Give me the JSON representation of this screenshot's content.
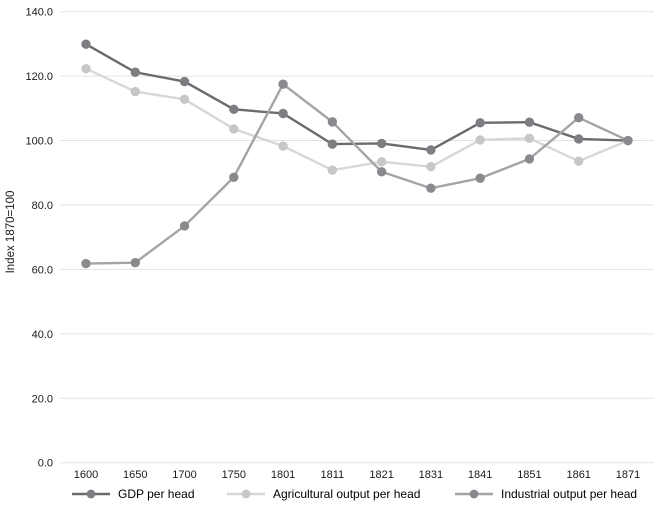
{
  "chart_data": {
    "type": "line",
    "title": "",
    "xlabel": "",
    "ylabel": "Index 1870=100",
    "ylim": [
      0,
      140
    ],
    "grid": "horizontal-only",
    "legend_position": "bottom",
    "background_color": "#ffffff",
    "gridline_color": "#e3e3e3",
    "text_color": "#1a1a1a",
    "categories": [
      "1600",
      "1650",
      "1700",
      "1750",
      "1801",
      "1811",
      "1821",
      "1831",
      "1841",
      "1851",
      "1861",
      "1871"
    ],
    "y_tick_values": [
      0,
      20,
      40,
      60,
      80,
      100,
      120,
      140
    ],
    "y_tick_labels": [
      "0.0",
      "20.0",
      "40.0",
      "60.0",
      "80.0",
      "100.0",
      "120.0",
      "140.0"
    ],
    "series": [
      {
        "name": "GDP per head",
        "line_color": "#6b6b6f",
        "marker_color": "#7d7d82",
        "values": [
          129.9,
          121.2,
          118.3,
          109.7,
          108.4,
          98.9,
          99.1,
          97.1,
          105.5,
          105.7,
          100.5,
          100.0
        ]
      },
      {
        "name": "Agricultural output per head",
        "line_color": "#d7d7d9",
        "marker_color": "#c7c7ca",
        "values": [
          122.3,
          115.2,
          112.8,
          103.6,
          98.3,
          90.8,
          93.4,
          91.9,
          100.2,
          100.7,
          93.6,
          100.0
        ]
      },
      {
        "name": "Industrial output per head",
        "line_color": "#a4a4a8",
        "marker_color": "#8a8a8e",
        "values": [
          61.8,
          62.1,
          73.5,
          88.6,
          117.5,
          105.8,
          90.3,
          85.2,
          88.3,
          94.3,
          107.1,
          100.0
        ]
      }
    ]
  }
}
